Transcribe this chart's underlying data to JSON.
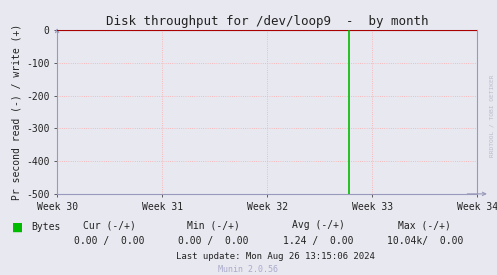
{
  "title": "Disk throughput for /dev/loop9  -  by month",
  "ylabel": "Pr second read (-) / write (+)",
  "outer_bg_color": "#e8e8f0",
  "plot_bg_color": "#e8e8f0",
  "grid_color": "#ffaaaa",
  "axis_color": "#9999bb",
  "title_color": "#222222",
  "ylim": [
    -500,
    0
  ],
  "yticks": [
    0,
    -100,
    -200,
    -300,
    -400,
    -500
  ],
  "xtick_labels": [
    "Week 30",
    "Week 31",
    "Week 32",
    "Week 33",
    "Week 34"
  ],
  "xtick_positions": [
    0.1,
    0.3,
    0.5,
    0.7,
    0.9
  ],
  "green_line_x": 0.694,
  "legend_label": "Bytes",
  "legend_color": "#00bb00",
  "cur_label": "Cur (-/+)",
  "cur_value": "0.00 /  0.00",
  "min_label": "Min (-/+)",
  "min_value": "0.00 /  0.00",
  "avg_label": "Avg (-/+)",
  "avg_value": "1.24 /  0.00",
  "max_label": "Max (-/+)",
  "max_value": "10.04k/  0.00",
  "last_update": "Last update: Mon Aug 26 13:15:06 2024",
  "munin_version": "Munin 2.0.56",
  "watermark": "RRDTOOL / TOBI OETIKER",
  "data_line_color": "#aa0000",
  "arrow_color": "#9999bb"
}
